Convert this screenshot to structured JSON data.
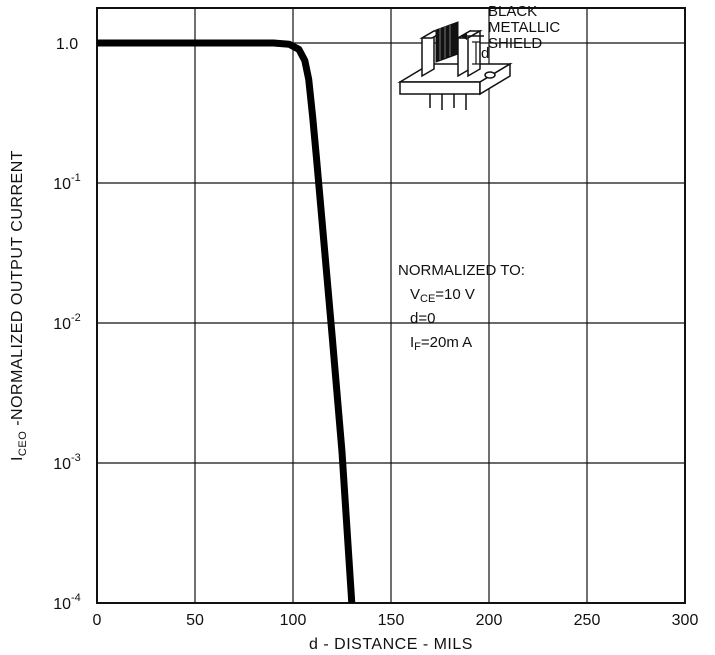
{
  "chart_data": {
    "type": "line",
    "xlabel": "d - DISTANCE - MILS",
    "ylabel": {
      "main": "I",
      "subscript": "CEO",
      "rest": " -NORMALIZED OUTPUT CURRENT"
    },
    "xlim": [
      0,
      300
    ],
    "ylim": [
      0.0001,
      1
    ],
    "y_scale": "log",
    "grid": true,
    "x_ticks": [
      "0",
      "50",
      "100",
      "150",
      "200",
      "250",
      "300"
    ],
    "y_ticks": [
      {
        "value": 1.0,
        "base": "1.0",
        "exp": ""
      },
      {
        "value": 0.1,
        "base": "10",
        "exp": "-1"
      },
      {
        "value": 0.01,
        "base": "10",
        "exp": "-2"
      },
      {
        "value": 0.001,
        "base": "10",
        "exp": "-3"
      },
      {
        "value": 0.0001,
        "base": "10",
        "exp": "-4"
      }
    ],
    "series": [
      {
        "x": [
          0,
          50,
          90,
          98,
          103,
          106,
          108,
          110,
          112,
          115,
          120,
          125,
          130
        ],
        "y": [
          1.0,
          1.0,
          1.0,
          0.98,
          0.9,
          0.75,
          0.55,
          0.3,
          0.15,
          0.05,
          0.008,
          0.0012,
          0.0001
        ],
        "color": "#000000"
      }
    ],
    "annotations": {
      "shield_label": [
        "BLACK",
        "METALLIC",
        "SHIELD"
      ],
      "d_label": "d",
      "normalized_title": "NORMALIZED TO:",
      "vce": {
        "main": "V",
        "sub": "CE",
        "rest": "=10 V"
      },
      "d_eq": "d=0",
      "if": {
        "main": "I",
        "sub": "F",
        "rest": "=20m A"
      }
    }
  }
}
